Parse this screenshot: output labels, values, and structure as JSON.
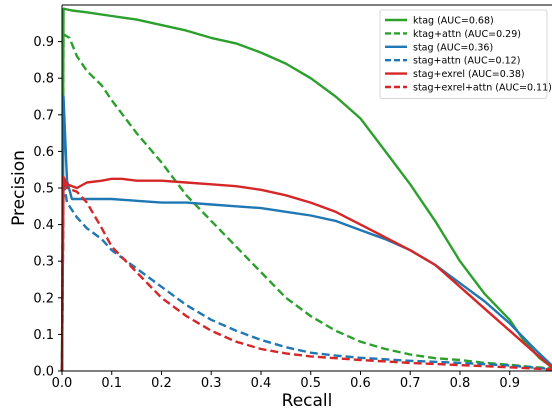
{
  "chart_data": {
    "type": "line",
    "title": "",
    "xlabel": "Recall",
    "ylabel": "Precision",
    "xlim": [
      0.0,
      0.985
    ],
    "ylim": [
      0.0,
      1.0
    ],
    "xticks": [
      "0.0",
      "0.1",
      "0.2",
      "0.3",
      "0.4",
      "0.5",
      "0.6",
      "0.7",
      "0.8",
      "0.9"
    ],
    "yticks": [
      "0.0",
      "0.1",
      "0.2",
      "0.3",
      "0.4",
      "0.5",
      "0.6",
      "0.7",
      "0.8",
      "0.9"
    ],
    "grid": false,
    "legend_position": "top-right",
    "series": [
      {
        "name": "ktag (AUC=0.68)",
        "color": "#2ca02c",
        "dash": "solid",
        "x": [
          0.0,
          0.003,
          0.02,
          0.05,
          0.1,
          0.15,
          0.2,
          0.25,
          0.3,
          0.35,
          0.4,
          0.45,
          0.5,
          0.55,
          0.6,
          0.65,
          0.7,
          0.75,
          0.8,
          0.85,
          0.9,
          0.93,
          0.96,
          0.985
        ],
        "y": [
          0.0,
          0.99,
          0.985,
          0.98,
          0.97,
          0.96,
          0.945,
          0.93,
          0.91,
          0.895,
          0.87,
          0.84,
          0.8,
          0.75,
          0.69,
          0.6,
          0.51,
          0.41,
          0.3,
          0.21,
          0.14,
          0.08,
          0.035,
          0.01
        ]
      },
      {
        "name": "ktag+attn (AUC=0.29)",
        "color": "#2ca02c",
        "dash": "dashed",
        "x": [
          0.0,
          0.003,
          0.015,
          0.03,
          0.05,
          0.08,
          0.1,
          0.15,
          0.2,
          0.25,
          0.3,
          0.35,
          0.4,
          0.45,
          0.5,
          0.55,
          0.6,
          0.65,
          0.7,
          0.75,
          0.8,
          0.85,
          0.9,
          0.95,
          0.985
        ],
        "y": [
          0.0,
          0.92,
          0.91,
          0.86,
          0.82,
          0.78,
          0.74,
          0.65,
          0.57,
          0.48,
          0.41,
          0.34,
          0.27,
          0.2,
          0.15,
          0.11,
          0.08,
          0.06,
          0.045,
          0.035,
          0.03,
          0.022,
          0.017,
          0.01,
          0.008
        ]
      },
      {
        "name": "stag (AUC=0.36)",
        "color": "#1f77b4",
        "dash": "solid",
        "x": [
          0.0,
          0.003,
          0.01,
          0.02,
          0.05,
          0.1,
          0.15,
          0.2,
          0.25,
          0.3,
          0.35,
          0.4,
          0.45,
          0.5,
          0.55,
          0.6,
          0.65,
          0.7,
          0.75,
          0.8,
          0.85,
          0.9,
          0.95,
          0.985
        ],
        "y": [
          0.0,
          0.75,
          0.52,
          0.47,
          0.47,
          0.47,
          0.465,
          0.46,
          0.46,
          0.455,
          0.45,
          0.445,
          0.435,
          0.425,
          0.41,
          0.385,
          0.36,
          0.33,
          0.29,
          0.24,
          0.19,
          0.13,
          0.06,
          0.015
        ]
      },
      {
        "name": "stag+attn (AUC=0.12)",
        "color": "#1f77b4",
        "dash": "dashed",
        "x": [
          0.0,
          0.003,
          0.01,
          0.03,
          0.05,
          0.08,
          0.1,
          0.15,
          0.2,
          0.25,
          0.3,
          0.35,
          0.4,
          0.45,
          0.5,
          0.55,
          0.6,
          0.7,
          0.8,
          0.9,
          0.985
        ],
        "y": [
          0.0,
          0.52,
          0.46,
          0.42,
          0.39,
          0.36,
          0.33,
          0.28,
          0.23,
          0.18,
          0.14,
          0.11,
          0.085,
          0.065,
          0.05,
          0.042,
          0.036,
          0.028,
          0.022,
          0.015,
          0.005
        ]
      },
      {
        "name": "stag+exrel (AUC=0.38)",
        "color": "#d62728",
        "dash": "solid",
        "x": [
          0.0,
          0.003,
          0.01,
          0.03,
          0.05,
          0.08,
          0.1,
          0.12,
          0.15,
          0.2,
          0.25,
          0.3,
          0.35,
          0.4,
          0.45,
          0.5,
          0.55,
          0.6,
          0.65,
          0.7,
          0.75,
          0.8,
          0.85,
          0.9,
          0.95,
          0.985
        ],
        "y": [
          0.0,
          0.53,
          0.51,
          0.5,
          0.515,
          0.52,
          0.525,
          0.525,
          0.52,
          0.52,
          0.515,
          0.51,
          0.505,
          0.495,
          0.48,
          0.46,
          0.435,
          0.4,
          0.365,
          0.33,
          0.29,
          0.23,
          0.17,
          0.11,
          0.05,
          0.01
        ]
      },
      {
        "name": "stag+exrel+attn (AUC=0.11)",
        "color": "#d62728",
        "dash": "dashed",
        "x": [
          0.0,
          0.003,
          0.01,
          0.03,
          0.05,
          0.08,
          0.1,
          0.15,
          0.2,
          0.25,
          0.3,
          0.35,
          0.4,
          0.45,
          0.5,
          0.6,
          0.7,
          0.8,
          0.9,
          0.985
        ],
        "y": [
          0.0,
          0.52,
          0.5,
          0.49,
          0.46,
          0.39,
          0.34,
          0.27,
          0.2,
          0.15,
          0.11,
          0.08,
          0.06,
          0.048,
          0.04,
          0.03,
          0.022,
          0.016,
          0.01,
          0.004
        ]
      }
    ]
  }
}
